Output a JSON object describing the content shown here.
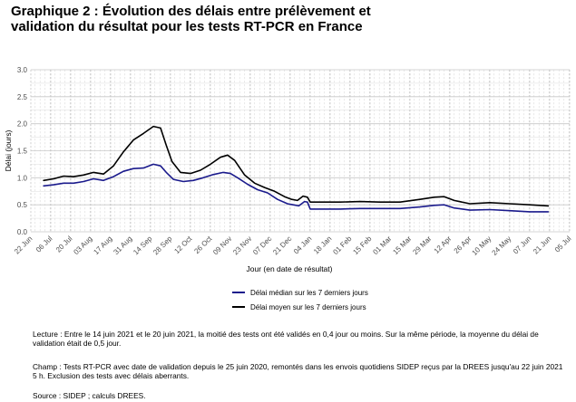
{
  "title": {
    "line1": "Graphique 2 : Évolution des délais entre prélèvement et",
    "line2": "validation du résultat pour les tests RT-PCR en France"
  },
  "notes": {
    "lecture": "Lecture : Entre le 14 juin 2021 et le 20 juin 2021, la moitié des tests ont été validés en 0,4 jour ou moins. Sur la même période, la moyenne du délai de validation était de 0,5 jour.",
    "champ": "Champ : Tests RT-PCR avec date de validation depuis le 25 juin 2020, remontés dans les envois quotidiens SIDEP reçus par la DREES jusqu'au 22 juin 2021 5 h. Exclusion des tests avec délais aberrants.",
    "source": "Source : SIDEP ; calculs DREES."
  },
  "colors": {
    "median": "#1a1a8c",
    "mean": "#000000",
    "grid_major": "#c8c8c8",
    "grid_minor": "#dcdcdc",
    "axis_text": "#4d4d4d"
  },
  "chart_data": {
    "type": "line",
    "title": "",
    "xlabel": "Jour (en date de résultat)",
    "ylabel": "Délai (jours)",
    "ylim": [
      0,
      3.0
    ],
    "yticks": [
      0.0,
      0.5,
      1.0,
      1.5,
      2.0,
      2.5,
      3.0
    ],
    "ytick_labels": [
      "0.0",
      "0.5",
      "1.0",
      "1.5",
      "2.0",
      "2.5",
      "3.0"
    ],
    "xlim": [
      "2020-06-22",
      "2021-07-05"
    ],
    "xticks": [
      "2020-06-22",
      "2020-07-06",
      "2020-07-20",
      "2020-08-03",
      "2020-08-17",
      "2020-08-31",
      "2020-09-14",
      "2020-09-28",
      "2020-10-12",
      "2020-10-26",
      "2020-11-09",
      "2020-11-23",
      "2020-12-07",
      "2020-12-21",
      "2021-01-04",
      "2021-01-18",
      "2021-02-01",
      "2021-02-15",
      "2021-03-01",
      "2021-03-15",
      "2021-03-29",
      "2021-04-12",
      "2021-04-26",
      "2021-05-10",
      "2021-05-24",
      "2021-06-07",
      "2021-06-21",
      "2021-07-05"
    ],
    "xtick_labels": [
      "22 Jun",
      "06 Jul",
      "20 Jul",
      "03 Aug",
      "17 Aug",
      "31 Aug",
      "14 Sep",
      "28 Sep",
      "12 Oct",
      "26 Oct",
      "09 Nov",
      "23 Nov",
      "07 Dec",
      "21 Dec",
      "04 Jan",
      "18 Jan",
      "01 Feb",
      "15 Feb",
      "01 Mar",
      "15 Mar",
      "29 Mar",
      "12 Apr",
      "26 Apr",
      "10 May",
      "24 May",
      "07 Jun",
      "21 Jun",
      "05 Jul"
    ],
    "grid": true,
    "legend_position": "bottom",
    "series": [
      {
        "name": "Délai médian sur les 7 derniers jours",
        "color": "#1a1a8c",
        "points": [
          [
            "2020-07-01",
            0.85
          ],
          [
            "2020-07-08",
            0.87
          ],
          [
            "2020-07-15",
            0.9
          ],
          [
            "2020-07-22",
            0.9
          ],
          [
            "2020-07-29",
            0.93
          ],
          [
            "2020-08-05",
            0.98
          ],
          [
            "2020-08-12",
            0.95
          ],
          [
            "2020-08-19",
            1.02
          ],
          [
            "2020-08-26",
            1.12
          ],
          [
            "2020-09-02",
            1.17
          ],
          [
            "2020-09-09",
            1.18
          ],
          [
            "2020-09-16",
            1.25
          ],
          [
            "2020-09-21",
            1.22
          ],
          [
            "2020-09-25",
            1.1
          ],
          [
            "2020-09-30",
            0.97
          ],
          [
            "2020-10-07",
            0.93
          ],
          [
            "2020-10-14",
            0.95
          ],
          [
            "2020-10-21",
            1.0
          ],
          [
            "2020-10-28",
            1.06
          ],
          [
            "2020-11-04",
            1.1
          ],
          [
            "2020-11-09",
            1.08
          ],
          [
            "2020-11-14",
            1.0
          ],
          [
            "2020-11-21",
            0.88
          ],
          [
            "2020-11-28",
            0.78
          ],
          [
            "2020-12-05",
            0.72
          ],
          [
            "2020-12-12",
            0.6
          ],
          [
            "2020-12-19",
            0.52
          ],
          [
            "2020-12-23",
            0.5
          ],
          [
            "2020-12-27",
            0.48
          ],
          [
            "2020-12-31",
            0.56
          ],
          [
            "2021-01-02",
            0.55
          ],
          [
            "2021-01-04",
            0.42
          ],
          [
            "2021-01-11",
            0.42
          ],
          [
            "2021-01-25",
            0.42
          ],
          [
            "2021-02-08",
            0.43
          ],
          [
            "2021-02-22",
            0.43
          ],
          [
            "2021-03-08",
            0.43
          ],
          [
            "2021-03-22",
            0.46
          ],
          [
            "2021-04-01",
            0.49
          ],
          [
            "2021-04-08",
            0.5
          ],
          [
            "2021-04-15",
            0.44
          ],
          [
            "2021-04-26",
            0.4
          ],
          [
            "2021-05-10",
            0.41
          ],
          [
            "2021-05-24",
            0.39
          ],
          [
            "2021-06-07",
            0.37
          ],
          [
            "2021-06-20",
            0.37
          ]
        ]
      },
      {
        "name": "Délai moyen sur les 7 derniers jours",
        "color": "#000000",
        "points": [
          [
            "2020-07-01",
            0.95
          ],
          [
            "2020-07-08",
            0.98
          ],
          [
            "2020-07-15",
            1.03
          ],
          [
            "2020-07-22",
            1.02
          ],
          [
            "2020-07-29",
            1.05
          ],
          [
            "2020-08-05",
            1.1
          ],
          [
            "2020-08-12",
            1.07
          ],
          [
            "2020-08-19",
            1.22
          ],
          [
            "2020-08-26",
            1.48
          ],
          [
            "2020-09-02",
            1.7
          ],
          [
            "2020-09-09",
            1.82
          ],
          [
            "2020-09-16",
            1.95
          ],
          [
            "2020-09-21",
            1.92
          ],
          [
            "2020-09-25",
            1.6
          ],
          [
            "2020-09-29",
            1.3
          ],
          [
            "2020-10-05",
            1.1
          ],
          [
            "2020-10-12",
            1.08
          ],
          [
            "2020-10-19",
            1.14
          ],
          [
            "2020-10-26",
            1.25
          ],
          [
            "2020-11-02",
            1.38
          ],
          [
            "2020-11-07",
            1.42
          ],
          [
            "2020-11-12",
            1.32
          ],
          [
            "2020-11-19",
            1.05
          ],
          [
            "2020-11-26",
            0.9
          ],
          [
            "2020-12-03",
            0.82
          ],
          [
            "2020-12-10",
            0.75
          ],
          [
            "2020-12-17",
            0.65
          ],
          [
            "2020-12-22",
            0.6
          ],
          [
            "2020-12-26",
            0.58
          ],
          [
            "2020-12-30",
            0.66
          ],
          [
            "2021-01-02",
            0.64
          ],
          [
            "2021-01-04",
            0.55
          ],
          [
            "2021-01-11",
            0.55
          ],
          [
            "2021-01-25",
            0.55
          ],
          [
            "2021-02-08",
            0.56
          ],
          [
            "2021-02-22",
            0.55
          ],
          [
            "2021-03-08",
            0.55
          ],
          [
            "2021-03-22",
            0.6
          ],
          [
            "2021-04-01",
            0.64
          ],
          [
            "2021-04-08",
            0.65
          ],
          [
            "2021-04-15",
            0.58
          ],
          [
            "2021-04-26",
            0.52
          ],
          [
            "2021-05-10",
            0.54
          ],
          [
            "2021-05-24",
            0.52
          ],
          [
            "2021-06-07",
            0.5
          ],
          [
            "2021-06-20",
            0.48
          ]
        ]
      }
    ]
  }
}
